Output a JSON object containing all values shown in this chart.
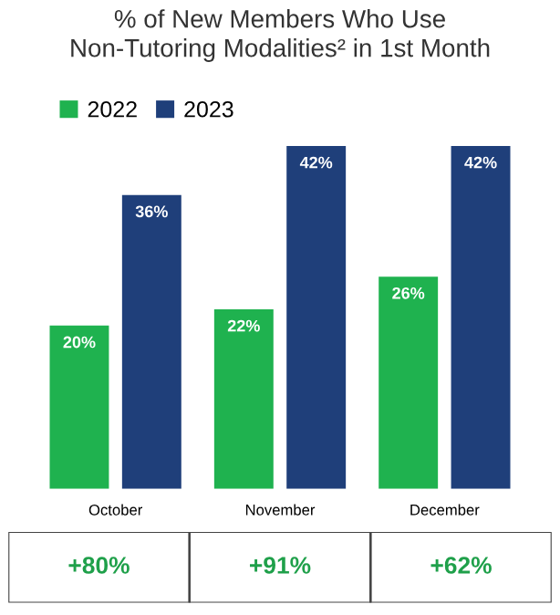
{
  "chart_data": {
    "type": "bar",
    "title": "% of New Members Who Use\nNon-Tutoring Modalities² in 1st Month",
    "categories": [
      "October",
      "November",
      "December"
    ],
    "series": [
      {
        "name": "2022",
        "color": "#1fb24f",
        "values": [
          20,
          22,
          26
        ],
        "value_labels": [
          "20%",
          "22%",
          "26%"
        ]
      },
      {
        "name": "2023",
        "color": "#1f3f7a",
        "values": [
          36,
          42,
          42
        ],
        "value_labels": [
          "36%",
          "42%",
          "42%"
        ]
      }
    ],
    "legend": "top left",
    "annotations": [
      "+80%",
      "+91%",
      "+62%"
    ]
  }
}
